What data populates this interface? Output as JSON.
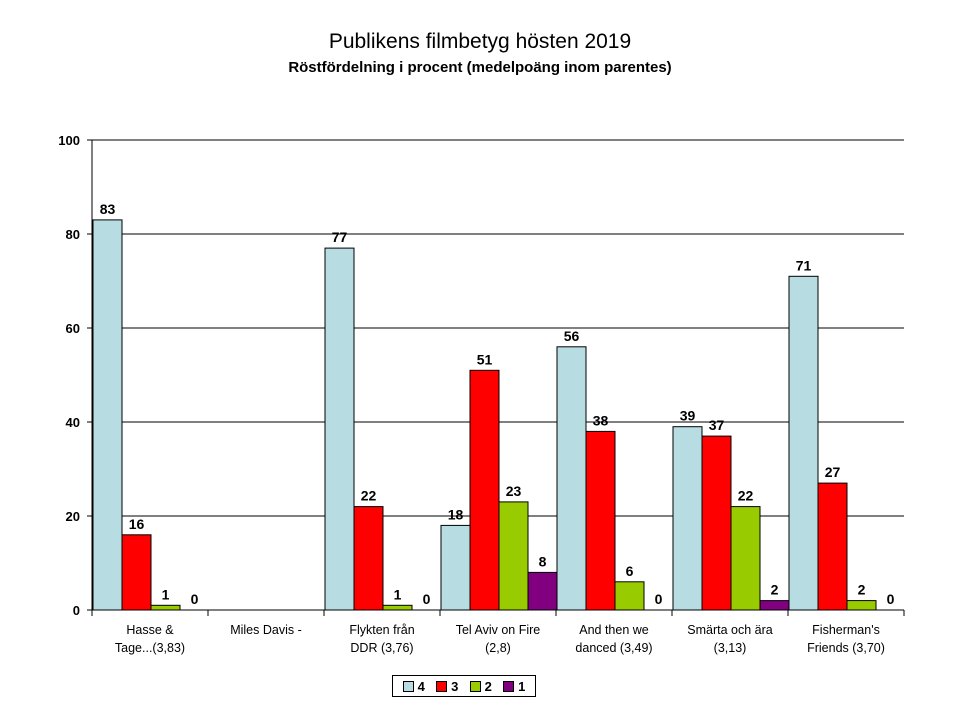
{
  "chart_data": {
    "type": "bar",
    "title": "Publikens filmbetyg hösten 2019",
    "subtitle": "Röstfördelning i procent (medelpoäng inom parentes)",
    "categories": [
      [
        "Hasse &",
        "Tage...(3,83)"
      ],
      [
        "Miles Davis -"
      ],
      [
        "Flykten från",
        "DDR (3,76)"
      ],
      [
        "Tel Aviv on Fire",
        "(2,8)"
      ],
      [
        "And then we",
        "danced (3,49)"
      ],
      [
        "Smärta och ära",
        "(3,13)"
      ],
      [
        "Fisherman's",
        "Friends (3,70)"
      ]
    ],
    "series": [
      {
        "name": "4",
        "color": "#b7dde3",
        "values": [
          83,
          null,
          77,
          18,
          56,
          39,
          71
        ]
      },
      {
        "name": "3",
        "color": "#ff0000",
        "values": [
          16,
          null,
          22,
          51,
          38,
          37,
          27
        ]
      },
      {
        "name": "2",
        "color": "#99cc00",
        "values": [
          1,
          null,
          1,
          23,
          6,
          22,
          2
        ]
      },
      {
        "name": "1",
        "color": "#800080",
        "values": [
          0,
          null,
          0,
          8,
          0,
          2,
          0
        ]
      }
    ],
    "ylim": [
      0,
      100
    ],
    "yticks": [
      0,
      20,
      40,
      60,
      80,
      100
    ],
    "grid": true,
    "legend_position": "bottom"
  }
}
